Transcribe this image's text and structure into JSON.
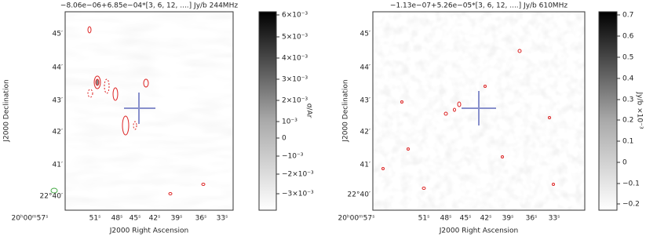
{
  "panels": [
    {
      "title": "−8.06e−06+6.85e−04*[3, 6, 12, ....] Jy/b  244MHz",
      "x_label": "J2000 Right Ascension",
      "y_label": "J2000 Declination",
      "x_ticks": [
        "20ʰ00ᵐ57ˢ",
        "51ˢ",
        "48ˢ",
        "45ˢ",
        "42ˢ",
        "39ˢ",
        "36ˢ",
        "33ˢ"
      ],
      "y_ticks": [
        "45′",
        "44′",
        "43′",
        "42′",
        "41′",
        "22°40′"
      ],
      "colorbar_label": "σ/Ar",
      "colorbar_ticks": [
        "6×10⁻³",
        "5×10⁻³",
        "4×10⁻³",
        "3×10⁻³",
        "2×10⁻³",
        "10⁻³",
        "0",
        "−10⁻³",
        "−2×10⁻³",
        "−3×10⁻³"
      ]
    },
    {
      "title": "−1.13e−07+5.26e−05*[3, 6, 12, ....] Jy/b  610MHz",
      "x_label": "J2000 Right Ascension",
      "y_label": "J2000 Declination",
      "x_ticks": [
        "20ʰ00ᵐ57ˢ",
        "51ˢ",
        "48ˢ",
        "45ˢ",
        "42ˢ",
        "39ˢ",
        "36ˢ",
        "33ˢ"
      ],
      "y_ticks": [
        "45′",
        "44′",
        "43′",
        "42′",
        "41′",
        "22°40′"
      ],
      "colorbar_label": "Jy/b ×10⁻³",
      "colorbar_ticks": [
        "0.7",
        "0.6",
        "0.5",
        "0.4",
        "0.3",
        "0.2",
        "0.1",
        "0",
        "−0.1",
        "−0.2"
      ]
    }
  ]
}
